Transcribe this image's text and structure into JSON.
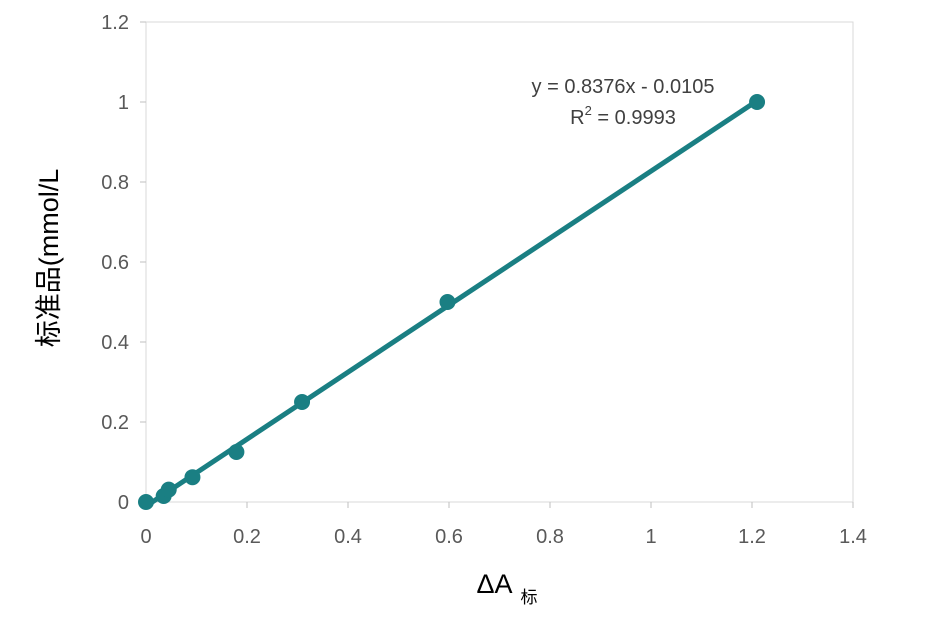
{
  "chart_data": {
    "type": "scatter",
    "title": "",
    "xlabel": "ΔA",
    "xlabel_subscript": "标",
    "ylabel": "标准品(mmol/L",
    "xlim": [
      0,
      1.4
    ],
    "ylim": [
      0,
      1.2
    ],
    "x_ticks": [
      0,
      0.2,
      0.4,
      0.6,
      0.8,
      1.0,
      1.2,
      1.4
    ],
    "x_tick_labels": [
      "0",
      "0.2",
      "0.4",
      "0.6",
      "0.8",
      "1",
      "1.2",
      "1.4"
    ],
    "y_ticks": [
      0,
      0.2,
      0.4,
      0.6,
      0.8,
      1.0,
      1.2
    ],
    "y_tick_labels": [
      "0",
      "0.2",
      "0.4",
      "0.6",
      "0.8",
      "1",
      "1.2"
    ],
    "grid": false,
    "legend": "none",
    "series": [
      {
        "x": [
          0,
          0.035,
          0.045,
          0.092,
          0.179,
          0.309,
          0.597,
          1.21
        ],
        "y": [
          0,
          0.015,
          0.031,
          0.062,
          0.125,
          0.25,
          0.5,
          1.0
        ],
        "color": "#1a7f83"
      }
    ],
    "trendline": {
      "slope": 0.8376,
      "intercept": -0.0105,
      "x_range": [
        0,
        1.21
      ],
      "color": "#1a7f83"
    },
    "annotation": {
      "equation": "y = 0.8376x - 0.0105",
      "r2_prefix": "R",
      "r2_sup": "2",
      "r2_value": " = 0.9993"
    }
  }
}
